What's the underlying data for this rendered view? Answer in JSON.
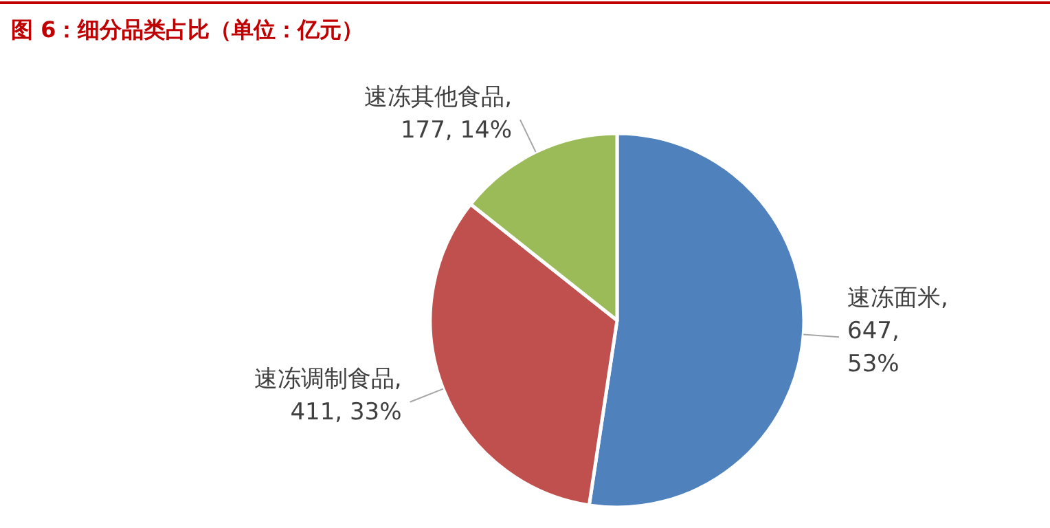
{
  "chart_data": {
    "type": "pie",
    "title": "图 6：细分品类占比（单位：亿元）",
    "categories": [
      "速冻面米",
      "速冻调制食品",
      "速冻其他食品"
    ],
    "values": [
      647,
      411,
      177
    ],
    "colors": [
      "#4f81bd",
      "#c0504d",
      "#9bbb59"
    ],
    "value_labels": [
      ", 647, 53%",
      ", 411, 33%",
      ", 177, 14%"
    ],
    "legend": false
  }
}
